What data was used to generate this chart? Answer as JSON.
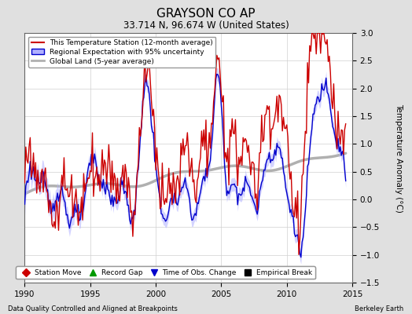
{
  "title": "GRAYSON CO AP",
  "subtitle": "33.714 N, 96.674 W (United States)",
  "xlabel_left": "Data Quality Controlled and Aligned at Breakpoints",
  "xlabel_right": "Berkeley Earth",
  "ylabel": "Temperature Anomaly (°C)",
  "xlim": [
    1990,
    2015
  ],
  "ylim": [
    -1.5,
    3.0
  ],
  "yticks": [
    -1.5,
    -1.0,
    -0.5,
    0.0,
    0.5,
    1.0,
    1.5,
    2.0,
    2.5,
    3.0
  ],
  "xticks": [
    1990,
    1995,
    2000,
    2005,
    2010,
    2015
  ],
  "bg_color": "#e0e0e0",
  "plot_bg_color": "#ffffff",
  "red_color": "#cc0000",
  "blue_color": "#0000cc",
  "blue_fill_color": "#b0b0ff",
  "gray_color": "#b0b0b0",
  "legend_items": [
    "This Temperature Station (12-month average)",
    "Regional Expectation with 95% uncertainty",
    "Global Land (5-year average)"
  ],
  "marker_items": [
    {
      "label": "Station Move",
      "color": "#cc0000",
      "marker": "D"
    },
    {
      "label": "Record Gap",
      "color": "#009900",
      "marker": "^"
    },
    {
      "label": "Time of Obs. Change",
      "color": "#0000cc",
      "marker": "v"
    },
    {
      "label": "Empirical Break",
      "color": "#000000",
      "marker": "s"
    }
  ]
}
